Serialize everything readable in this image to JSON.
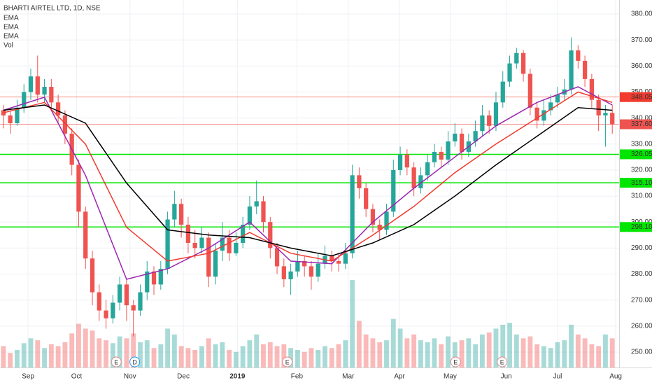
{
  "chart_data": {
    "type": "candlestick",
    "title": "BHARTI AIRTEL LTD, 1D, NSE",
    "legend": [
      "EMA",
      "EMA",
      "EMA",
      "Vol"
    ],
    "up_color": "#26a69a",
    "down_color": "#ef5350",
    "ylim": [
      250,
      380
    ],
    "yticks": [
      {
        "value": 250,
        "label": "250.00"
      },
      {
        "value": 260,
        "label": "260.00"
      },
      {
        "value": 270,
        "label": "270.00"
      },
      {
        "value": 280,
        "label": "280.00"
      },
      {
        "value": 290,
        "label": "290.00"
      },
      {
        "value": 300,
        "label": "300.00"
      },
      {
        "value": 310,
        "label": "310.00"
      },
      {
        "value": 320,
        "label": "320.00"
      },
      {
        "value": 330,
        "label": "330.00"
      },
      {
        "value": 340,
        "label": "340.00"
      },
      {
        "value": 350,
        "label": "350.00"
      },
      {
        "value": 360,
        "label": "360.00"
      },
      {
        "value": 370,
        "label": "370.00"
      },
      {
        "value": 380,
        "label": "380.00"
      }
    ],
    "xlim": [
      -0.5,
      90
    ],
    "xticks": [
      {
        "value": 3.6,
        "label": "Sep"
      },
      {
        "value": 10.7,
        "label": "Oct"
      },
      {
        "value": 18.5,
        "label": "Nov"
      },
      {
        "value": 26.3,
        "label": "Dec"
      },
      {
        "value": 34.2,
        "label": "2019"
      },
      {
        "value": 42.9,
        "label": "Feb"
      },
      {
        "value": 50.4,
        "label": "Mar"
      },
      {
        "value": 57.9,
        "label": "Apr"
      },
      {
        "value": 65.3,
        "label": "May"
      },
      {
        "value": 73.5,
        "label": "Jun"
      },
      {
        "value": 81.0,
        "label": "Jul"
      },
      {
        "value": 89.5,
        "label": "Aug"
      }
    ],
    "grid": true,
    "candles": [
      [
        343,
        345,
        336,
        341
      ],
      [
        341,
        343,
        334,
        338
      ],
      [
        338,
        347,
        337,
        344
      ],
      [
        344,
        353,
        342,
        350
      ],
      [
        350,
        359,
        347,
        356
      ],
      [
        356,
        364,
        346,
        349
      ],
      [
        349,
        355,
        346,
        352
      ],
      [
        352,
        355,
        343,
        346
      ],
      [
        346,
        349,
        338,
        341
      ],
      [
        341,
        343,
        330,
        334
      ],
      [
        334,
        336,
        318,
        322
      ],
      [
        322,
        324,
        298,
        304
      ],
      [
        304,
        306,
        282,
        286
      ],
      [
        286,
        289,
        268,
        273
      ],
      [
        273,
        276,
        262,
        266
      ],
      [
        266,
        270,
        259,
        263
      ],
      [
        263,
        272,
        261,
        269
      ],
      [
        269,
        279,
        266,
        276
      ],
      [
        276,
        278,
        262,
        268
      ],
      [
        268,
        270,
        256,
        266
      ],
      [
        266,
        276,
        264,
        273
      ],
      [
        273,
        285,
        270,
        281
      ],
      [
        281,
        283,
        272,
        276
      ],
      [
        276,
        285,
        274,
        282
      ],
      [
        282,
        304,
        280,
        301
      ],
      [
        301,
        312,
        298,
        307
      ],
      [
        307,
        309,
        294,
        299
      ],
      [
        299,
        302,
        288,
        292
      ],
      [
        292,
        297,
        286,
        290
      ],
      [
        290,
        298,
        288,
        294
      ],
      [
        294,
        296,
        275,
        279
      ],
      [
        279,
        292,
        276,
        289
      ],
      [
        289,
        300,
        285,
        294
      ],
      [
        294,
        297,
        285,
        288
      ],
      [
        288,
        296,
        287,
        292
      ],
      [
        292,
        302,
        290,
        299
      ],
      [
        299,
        310,
        297,
        306
      ],
      [
        306,
        316,
        303,
        308
      ],
      [
        308,
        310,
        296,
        300
      ],
      [
        300,
        302,
        286,
        290
      ],
      [
        290,
        292,
        280,
        283
      ],
      [
        283,
        286,
        275,
        278
      ],
      [
        278,
        284,
        272,
        281
      ],
      [
        281,
        289,
        279,
        285
      ],
      [
        285,
        287,
        279,
        283
      ],
      [
        283,
        285,
        274,
        279
      ],
      [
        279,
        288,
        277,
        284
      ],
      [
        284,
        291,
        282,
        287
      ],
      [
        287,
        289,
        281,
        285
      ],
      [
        285,
        288,
        281,
        284
      ],
      [
        284,
        292,
        282,
        288
      ],
      [
        288,
        322,
        286,
        318
      ],
      [
        318,
        321,
        309,
        313
      ],
      [
        313,
        315,
        302,
        305
      ],
      [
        305,
        307,
        296,
        299
      ],
      [
        299,
        301,
        293,
        297
      ],
      [
        297,
        307,
        295,
        304
      ],
      [
        304,
        324,
        302,
        320
      ],
      [
        320,
        329,
        318,
        326
      ],
      [
        326,
        328,
        318,
        321
      ],
      [
        321,
        323,
        310,
        313
      ],
      [
        313,
        321,
        311,
        318
      ],
      [
        318,
        326,
        316,
        323
      ],
      [
        323,
        330,
        321,
        327
      ],
      [
        327,
        329,
        321,
        324
      ],
      [
        324,
        335,
        322,
        331
      ],
      [
        331,
        338,
        329,
        334
      ],
      [
        334,
        336,
        324,
        327
      ],
      [
        327,
        334,
        325,
        331
      ],
      [
        331,
        339,
        329,
        335
      ],
      [
        335,
        345,
        333,
        341
      ],
      [
        341,
        343,
        334,
        337
      ],
      [
        337,
        350,
        335,
        346
      ],
      [
        346,
        358,
        344,
        354
      ],
      [
        354,
        364,
        352,
        361
      ],
      [
        361,
        367,
        359,
        365
      ],
      [
        365,
        366,
        354,
        357
      ],
      [
        357,
        359,
        341,
        344
      ],
      [
        344,
        346,
        336,
        339
      ],
      [
        339,
        347,
        337,
        343
      ],
      [
        343,
        349,
        341,
        346
      ],
      [
        346,
        352,
        344,
        349
      ],
      [
        349,
        355,
        347,
        351
      ],
      [
        351,
        371,
        349,
        366
      ],
      [
        366,
        368,
        359,
        362
      ],
      [
        362,
        364,
        352,
        355
      ],
      [
        355,
        357,
        344,
        347
      ],
      [
        347,
        349,
        335,
        341
      ],
      [
        341,
        345,
        329,
        342
      ],
      [
        342,
        345,
        334,
        337.6
      ]
    ],
    "volume": [
      22,
      15,
      18,
      25,
      30,
      28,
      20,
      24,
      22,
      26,
      35,
      45,
      40,
      38,
      30,
      28,
      25,
      32,
      30,
      35,
      26,
      28,
      20,
      24,
      40,
      34,
      22,
      20,
      18,
      22,
      30,
      24,
      26,
      18,
      16,
      22,
      28,
      34,
      24,
      26,
      22,
      24,
      20,
      18,
      16,
      20,
      18,
      22,
      20,
      24,
      28,
      90,
      48,
      34,
      30,
      26,
      28,
      50,
      40,
      30,
      34,
      28,
      26,
      30,
      24,
      32,
      26,
      28,
      30,
      24,
      34,
      36,
      40,
      44,
      46,
      34,
      30,
      32,
      24,
      22,
      20,
      26,
      28,
      44,
      34,
      30,
      24,
      22,
      34,
      30
    ],
    "emas": [
      {
        "color": "#9c27b0",
        "x": [
          0,
          6,
          12,
          18,
          24,
          30,
          36,
          42,
          48,
          54,
          60,
          66,
          72,
          78,
          84,
          89
        ],
        "values": [
          343,
          348,
          318,
          278,
          282,
          290,
          300,
          285,
          284,
          300,
          313,
          325,
          337,
          346,
          352,
          345
        ]
      },
      {
        "color": "#f23a2e",
        "x": [
          0,
          6,
          12,
          18,
          24,
          30,
          36,
          42,
          48,
          54,
          60,
          66,
          72,
          78,
          84,
          89
        ],
        "values": [
          342,
          346,
          330,
          298,
          285,
          288,
          296,
          288,
          285,
          295,
          306,
          319,
          330,
          340,
          350,
          346
        ]
      },
      {
        "color": "#000000",
        "x": [
          0,
          6,
          12,
          18,
          24,
          30,
          36,
          42,
          48,
          54,
          60,
          66,
          72,
          78,
          84,
          89
        ],
        "values": [
          343,
          345,
          338,
          315,
          297,
          295,
          294,
          290,
          287,
          292,
          299,
          310,
          322,
          333,
          344,
          343
        ]
      }
    ],
    "price_lines": [
      {
        "value": 348.05,
        "color": "#f23a2e"
      },
      {
        "value": 337.6,
        "label": "337.60",
        "color": "#ef5350"
      },
      {
        "value": 326.05,
        "color": "#00e600"
      },
      {
        "value": 315.1,
        "label": "315.10",
        "color": "#00e600"
      },
      {
        "value": 298.1,
        "label": "298.10",
        "color": "#00e600"
      }
    ],
    "events": [
      {
        "x": 16.5,
        "label": "E"
      },
      {
        "x": 19.2,
        "label": "D"
      },
      {
        "x": 41.5,
        "label": "E"
      },
      {
        "x": 66.1,
        "label": "E"
      },
      {
        "x": 72.9,
        "label": "E"
      }
    ]
  }
}
